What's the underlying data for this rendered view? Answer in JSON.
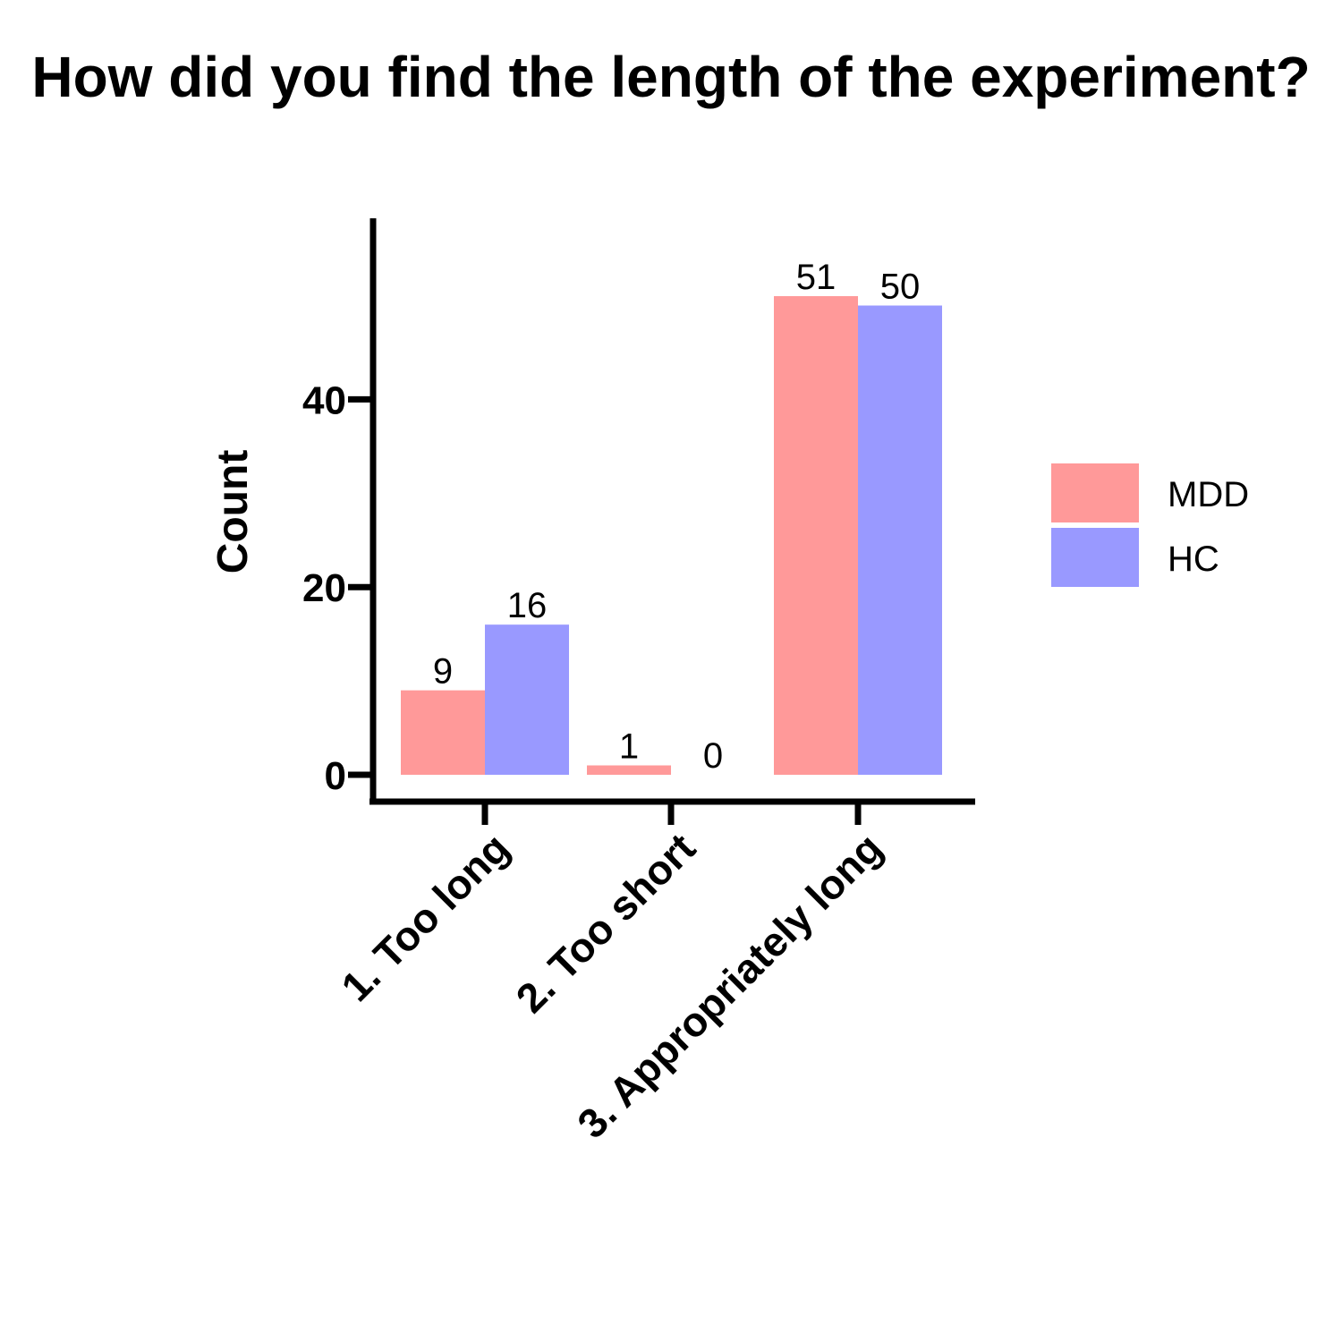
{
  "chart_data": {
    "type": "bar",
    "title": "How did you find the length of the experiment?",
    "ylabel": "Count",
    "xlabel": "",
    "categories": [
      "1. Too long",
      "2. Too short",
      "3. Appropriately long"
    ],
    "series": [
      {
        "name": "MDD",
        "values": [
          9,
          1,
          51
        ],
        "color": "#ff9999"
      },
      {
        "name": "HC",
        "values": [
          16,
          0,
          50
        ],
        "color": "#9999ff"
      }
    ],
    "ylim": [
      0,
      59
    ],
    "yticks": [
      0,
      20,
      40
    ],
    "grid": false,
    "legend_position": "right",
    "data_labels": true
  }
}
